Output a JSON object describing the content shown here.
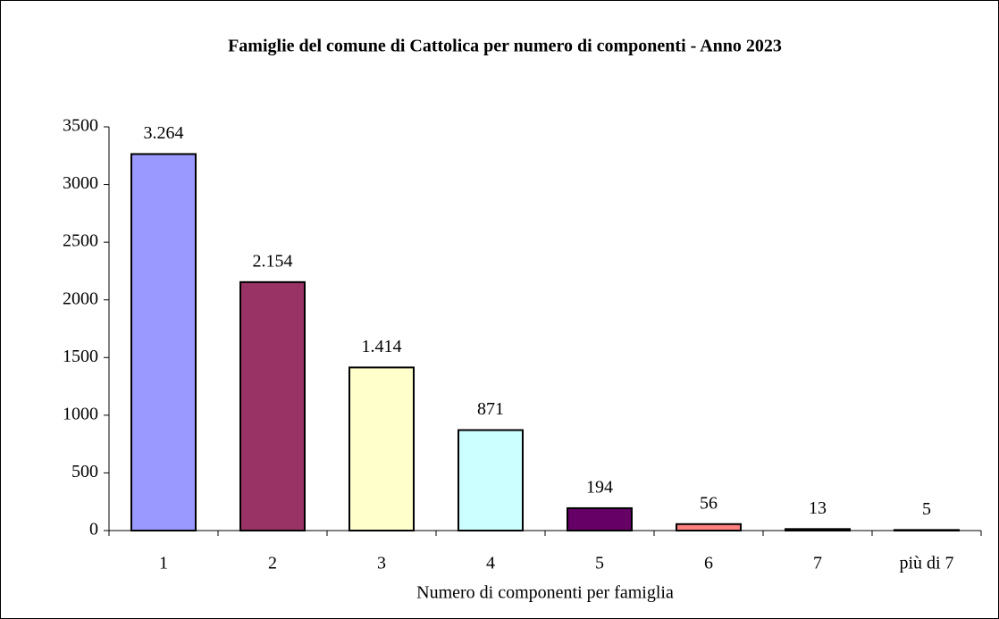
{
  "chart_data": {
    "type": "bar",
    "title": "Famiglie del comune di Cattolica per numero di componenti  - Anno 2023",
    "x_label": "Numero di componenti per famiglia",
    "categories": [
      "1",
      "2",
      "3",
      "4",
      "5",
      "6",
      "7",
      "più di 7"
    ],
    "values": [
      3264,
      2154,
      1414,
      871,
      194,
      56,
      13,
      5
    ],
    "value_labels": [
      "3.264",
      "2.154",
      "1.414",
      "871",
      "194",
      "56",
      "13",
      "5"
    ],
    "colors": [
      "#9999ff",
      "#993366",
      "#ffffcc",
      "#ccffff",
      "#660066",
      "#ff8080",
      "#0066cc",
      "#ccccff"
    ],
    "ylim": [
      0,
      3500
    ],
    "yticks": [
      0,
      500,
      1000,
      1500,
      2000,
      2500,
      3000,
      3500
    ],
    "grid": false
  }
}
